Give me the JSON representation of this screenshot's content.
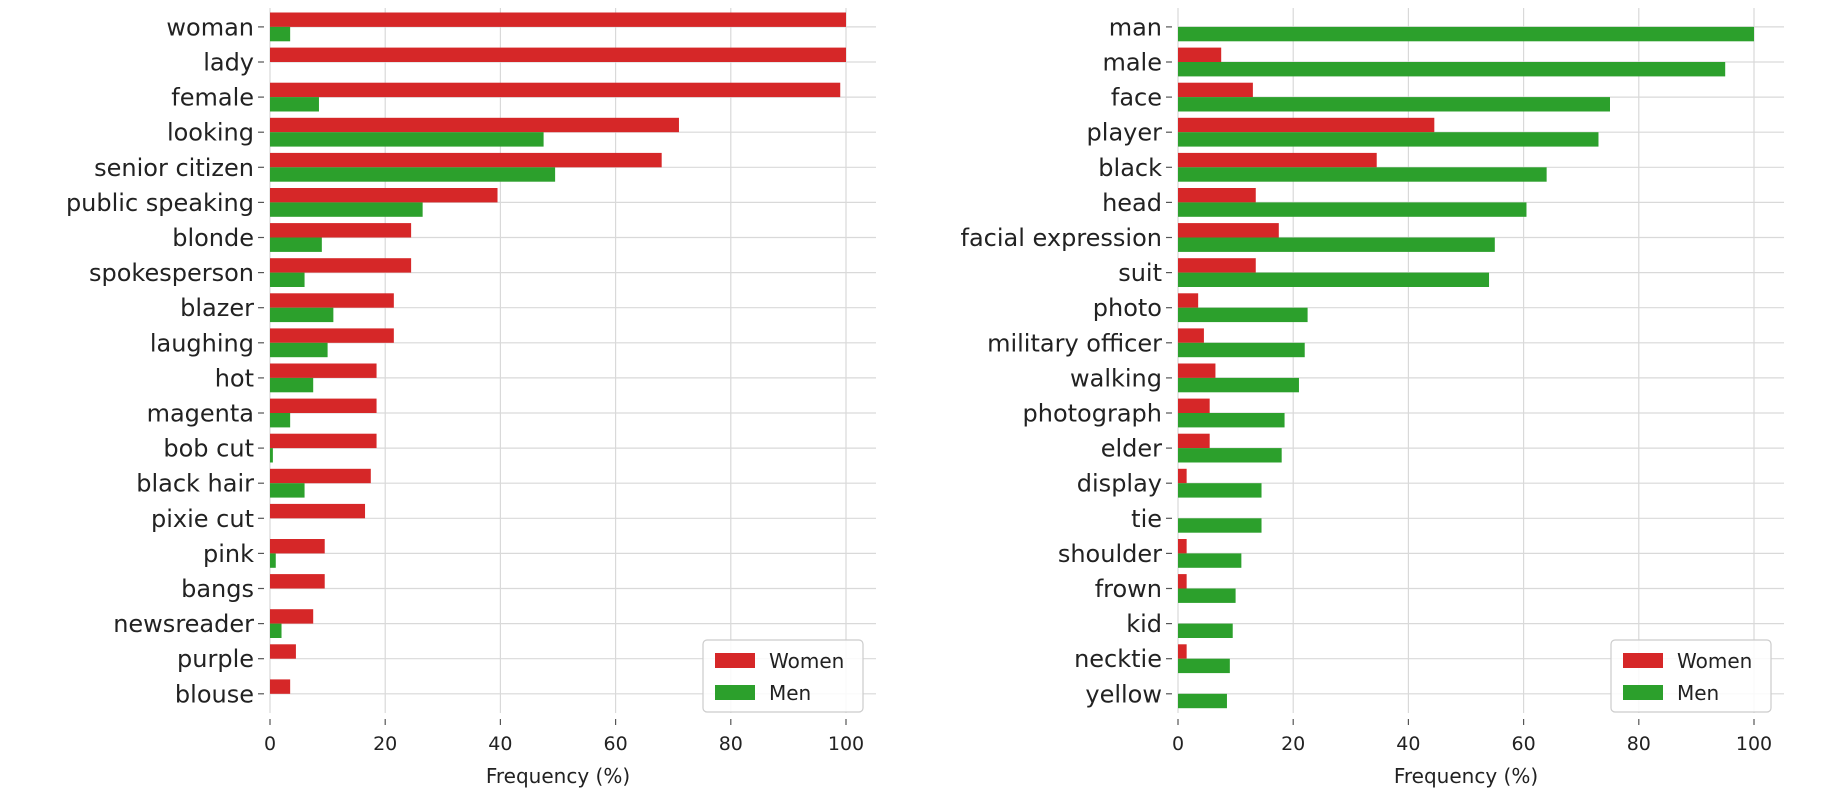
{
  "chart_data": [
    {
      "type": "bar",
      "orientation": "horizontal",
      "categories": [
        "woman",
        "lady",
        "female",
        "looking",
        "senior citizen",
        "public speaking",
        "blonde",
        "spokesperson",
        "blazer",
        "laughing",
        "hot",
        "magenta",
        "bob cut",
        "black hair",
        "pixie cut",
        "pink",
        "bangs",
        "newsreader",
        "purple",
        "blouse"
      ],
      "series": [
        {
          "name": "Women",
          "color": "#d62728",
          "values": [
            100,
            100,
            99,
            71,
            68,
            39.5,
            24.5,
            24.5,
            21.5,
            21.5,
            18.5,
            18.5,
            18.5,
            17.5,
            16.5,
            9.5,
            9.5,
            7.5,
            4.5,
            3.5
          ]
        },
        {
          "name": "Men",
          "color": "#2ca02c",
          "values": [
            3.5,
            0,
            8.5,
            47.5,
            49.5,
            26.5,
            9,
            6,
            11,
            10,
            7.5,
            3.5,
            0.5,
            6,
            0,
            1,
            0,
            2,
            0,
            0
          ]
        }
      ],
      "xlabel": "Frequency (%)",
      "xlim": [
        0,
        105
      ],
      "xticks": [
        "0",
        "20",
        "40",
        "60",
        "80",
        "100"
      ],
      "grid": true,
      "legend": "bottom-right"
    },
    {
      "type": "bar",
      "orientation": "horizontal",
      "categories": [
        "man",
        "male",
        "face",
        "player",
        "black",
        "head",
        "facial expression",
        "suit",
        "photo",
        "military officer",
        "walking",
        "photograph",
        "elder",
        "display",
        "tie",
        "shoulder",
        "frown",
        "kid",
        "necktie",
        "yellow"
      ],
      "series": [
        {
          "name": "Women",
          "color": "#d62728",
          "values": [
            0,
            7.5,
            13,
            44.5,
            34.5,
            13.5,
            17.5,
            13.5,
            3.5,
            4.5,
            6.5,
            5.5,
            5.5,
            1.5,
            0,
            1.5,
            1.5,
            0,
            1.5,
            0
          ]
        },
        {
          "name": "Men",
          "color": "#2ca02c",
          "values": [
            100,
            95,
            75,
            73,
            64,
            60.5,
            55,
            54,
            22.5,
            22,
            21,
            18.5,
            18,
            14.5,
            14.5,
            11,
            10,
            9.5,
            9,
            8.5
          ]
        }
      ],
      "xlabel": "Frequency (%)",
      "xlim": [
        0,
        105
      ],
      "xticks": [
        "0",
        "20",
        "40",
        "60",
        "80",
        "100"
      ],
      "grid": true,
      "legend": "bottom-right"
    }
  ]
}
